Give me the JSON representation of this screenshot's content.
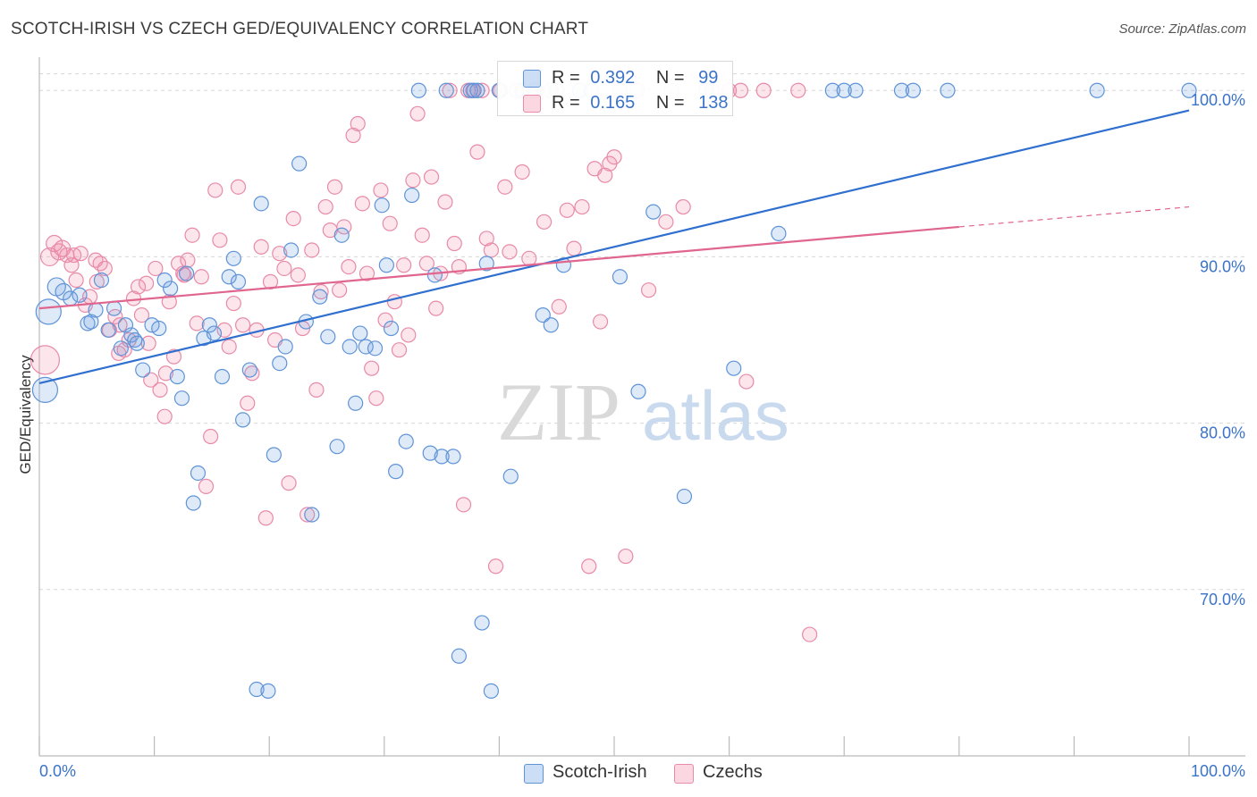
{
  "header": {
    "title": "SCOTCH-IRISH VS CZECH GED/EQUIVALENCY CORRELATION CHART",
    "source": "Source: ZipAtlas.com"
  },
  "watermark": {
    "part1": "ZIP",
    "part2": "atlas"
  },
  "legend": {
    "rows": [
      {
        "r_label": "R =",
        "r_value": "0.392",
        "n_label": "N =",
        "n_value": "99"
      },
      {
        "r_label": "R =",
        "r_value": "0.165",
        "n_label": "N =",
        "n_value": "138"
      }
    ]
  },
  "bottom_legend": {
    "series1": "Scotch-Irish",
    "series2": "Czechs"
  },
  "colors": {
    "blue_fill": "rgba(110,160,225,0.22)",
    "blue_stroke": "#5f93d8",
    "blue_line": "#2f6fcf",
    "pink_fill": "rgba(240,140,170,0.22)",
    "pink_stroke": "#e88aa8",
    "pink_line": "#e0658f",
    "axis_text": "#3b73c9",
    "grid": "#d8d8d8"
  },
  "chart_data": {
    "type": "scatter",
    "title": "SCOTCH-IRISH VS CZECH GED/EQUIVALENCY CORRELATION CHART",
    "xlabel": "",
    "ylabel": "GED/Equivalency",
    "xlim": [
      0,
      100
    ],
    "ylim": [
      60,
      102
    ],
    "x_tick_labels": [
      "0.0%",
      "100.0%"
    ],
    "y_ticks": [
      70,
      80,
      90,
      100
    ],
    "y_tick_labels": [
      "70.0%",
      "80.0%",
      "90.0%",
      "100.0%"
    ],
    "grid": true,
    "legend_position": "top-center",
    "series": [
      {
        "name": "Scotch-Irish",
        "R": 0.392,
        "N": 99,
        "trend": {
          "x": [
            0,
            100
          ],
          "y": [
            82.4,
            98.8
          ]
        },
        "points": [
          [
            0.5,
            82.0,
            14
          ],
          [
            0.8,
            86.7,
            14
          ],
          [
            1.5,
            88.2,
            10
          ],
          [
            2.1,
            87.9,
            9
          ],
          [
            2.7,
            87.5,
            8
          ],
          [
            3.5,
            87.7,
            8
          ],
          [
            4.2,
            86.0,
            8
          ],
          [
            4.5,
            86.1,
            8
          ],
          [
            4.9,
            86.8,
            8
          ],
          [
            5.4,
            88.6,
            8
          ],
          [
            6.0,
            85.6,
            8
          ],
          [
            6.5,
            86.9,
            8
          ],
          [
            7.1,
            84.5,
            8
          ],
          [
            7.5,
            85.9,
            8
          ],
          [
            8.0,
            85.3,
            8
          ],
          [
            8.3,
            85.0,
            8
          ],
          [
            8.5,
            84.8,
            8
          ],
          [
            9.0,
            83.2,
            8
          ],
          [
            9.8,
            85.9,
            8
          ],
          [
            10.4,
            85.7,
            8
          ],
          [
            10.9,
            88.6,
            8
          ],
          [
            11.4,
            88.1,
            8
          ],
          [
            12.0,
            82.8,
            8
          ],
          [
            12.4,
            81.5,
            8
          ],
          [
            12.8,
            89.0,
            8
          ],
          [
            13.4,
            75.2,
            8
          ],
          [
            13.8,
            77.0,
            8
          ],
          [
            14.3,
            85.1,
            8
          ],
          [
            14.8,
            85.9,
            8
          ],
          [
            15.2,
            85.4,
            8
          ],
          [
            15.9,
            82.8,
            8
          ],
          [
            16.5,
            88.8,
            8
          ],
          [
            16.9,
            89.9,
            8
          ],
          [
            17.3,
            88.5,
            8
          ],
          [
            17.7,
            80.2,
            8
          ],
          [
            18.3,
            83.2,
            8
          ],
          [
            18.9,
            64.0,
            8
          ],
          [
            19.3,
            93.2,
            8
          ],
          [
            19.9,
            63.9,
            8
          ],
          [
            20.4,
            78.1,
            8
          ],
          [
            20.9,
            83.6,
            8
          ],
          [
            21.4,
            84.6,
            8
          ],
          [
            21.9,
            90.4,
            8
          ],
          [
            22.6,
            95.6,
            8
          ],
          [
            23.2,
            86.1,
            8
          ],
          [
            23.7,
            74.5,
            8
          ],
          [
            24.4,
            87.6,
            8
          ],
          [
            25.1,
            85.2,
            8
          ],
          [
            25.9,
            78.6,
            8
          ],
          [
            26.3,
            91.3,
            8
          ],
          [
            27.0,
            84.6,
            8
          ],
          [
            27.5,
            81.2,
            8
          ],
          [
            27.9,
            85.4,
            8
          ],
          [
            28.4,
            84.6,
            8
          ],
          [
            29.2,
            84.5,
            8
          ],
          [
            29.8,
            93.1,
            8
          ],
          [
            30.2,
            89.5,
            8
          ],
          [
            30.6,
            85.7,
            8
          ],
          [
            31.0,
            77.1,
            8
          ],
          [
            31.9,
            78.9,
            8
          ],
          [
            32.4,
            93.7,
            8
          ],
          [
            33.0,
            100.0,
            8
          ],
          [
            34.0,
            78.2,
            8
          ],
          [
            34.4,
            88.9,
            8
          ],
          [
            35.0,
            78.0,
            8
          ],
          [
            35.4,
            100.0,
            8
          ],
          [
            36.0,
            78.0,
            8
          ],
          [
            36.5,
            66.0,
            8
          ],
          [
            37.5,
            100.0,
            8
          ],
          [
            37.8,
            100.0,
            8
          ],
          [
            38.1,
            100.0,
            8
          ],
          [
            38.5,
            68.0,
            8
          ],
          [
            38.9,
            89.6,
            8
          ],
          [
            39.3,
            63.9,
            8
          ],
          [
            40.0,
            100.0,
            8
          ],
          [
            41.0,
            76.8,
            8
          ],
          [
            42.0,
            100.0,
            8
          ],
          [
            43.0,
            100.0,
            8
          ],
          [
            45.0,
            100.0,
            8
          ],
          [
            47.0,
            100.0,
            8
          ],
          [
            48.0,
            100.0,
            8
          ],
          [
            43.8,
            86.5,
            8
          ],
          [
            44.5,
            85.9,
            8
          ],
          [
            45.6,
            89.5,
            8
          ],
          [
            50.5,
            88.8,
            8
          ],
          [
            52.1,
            81.9,
            8
          ],
          [
            53.4,
            92.7,
            8
          ],
          [
            56.1,
            75.6,
            8
          ],
          [
            58.0,
            100.0,
            8
          ],
          [
            60.4,
            83.3,
            8
          ],
          [
            64.3,
            91.4,
            8
          ],
          [
            69.0,
            100.0,
            8
          ],
          [
            75.0,
            100.0,
            8
          ],
          [
            76.0,
            100.0,
            8
          ],
          [
            79.0,
            100.0,
            8
          ],
          [
            92.0,
            100.0,
            8
          ],
          [
            100.0,
            100.0,
            8
          ],
          [
            70.0,
            100.0,
            8
          ],
          [
            71.0,
            100.0,
            8
          ]
        ]
      },
      {
        "name": "Czechs",
        "R": 0.165,
        "N": 138,
        "trend": {
          "x": [
            0,
            80
          ],
          "y": [
            86.9,
            91.8
          ]
        },
        "trend_dashed": {
          "x": [
            80,
            100
          ],
          "y": [
            91.8,
            93.0
          ]
        },
        "points": [
          [
            0.5,
            83.8,
            16
          ],
          [
            0.9,
            90.0,
            10
          ],
          [
            1.3,
            90.8,
            9
          ],
          [
            1.7,
            90.3,
            9
          ],
          [
            2.0,
            90.5,
            9
          ],
          [
            2.4,
            90.1,
            8
          ],
          [
            2.8,
            89.5,
            8
          ],
          [
            3.2,
            88.6,
            8
          ],
          [
            3.6,
            90.2,
            8
          ],
          [
            4.0,
            87.1,
            8
          ],
          [
            4.4,
            87.6,
            8
          ],
          [
            4.9,
            89.8,
            8
          ],
          [
            5.3,
            89.6,
            8
          ],
          [
            5.7,
            89.3,
            8
          ],
          [
            6.1,
            85.6,
            8
          ],
          [
            6.6,
            86.4,
            8
          ],
          [
            7.0,
            85.9,
            8
          ],
          [
            7.4,
            84.4,
            8
          ],
          [
            7.8,
            85.0,
            8
          ],
          [
            8.2,
            87.5,
            8
          ],
          [
            8.6,
            88.2,
            8
          ],
          [
            8.9,
            86.5,
            8
          ],
          [
            9.3,
            88.4,
            8
          ],
          [
            9.7,
            82.6,
            8
          ],
          [
            10.1,
            89.3,
            8
          ],
          [
            10.5,
            82.0,
            8
          ],
          [
            10.9,
            80.4,
            8
          ],
          [
            11.3,
            87.3,
            8
          ],
          [
            11.7,
            84.0,
            8
          ],
          [
            12.1,
            89.6,
            8
          ],
          [
            12.5,
            89.0,
            8
          ],
          [
            12.9,
            89.8,
            8
          ],
          [
            13.3,
            91.3,
            8
          ],
          [
            13.7,
            86.0,
            8
          ],
          [
            14.1,
            88.8,
            8
          ],
          [
            14.5,
            76.2,
            8
          ],
          [
            14.9,
            79.2,
            8
          ],
          [
            15.3,
            94.0,
            8
          ],
          [
            15.7,
            91.0,
            8
          ],
          [
            16.1,
            85.6,
            8
          ],
          [
            16.5,
            84.6,
            8
          ],
          [
            16.9,
            87.2,
            8
          ],
          [
            17.3,
            94.2,
            8
          ],
          [
            17.7,
            85.9,
            8
          ],
          [
            18.1,
            81.2,
            8
          ],
          [
            18.5,
            83.0,
            8
          ],
          [
            18.9,
            85.6,
            8
          ],
          [
            19.3,
            90.6,
            8
          ],
          [
            19.7,
            74.3,
            8
          ],
          [
            20.1,
            88.5,
            8
          ],
          [
            20.5,
            85.0,
            8
          ],
          [
            20.9,
            90.2,
            8
          ],
          [
            21.3,
            89.3,
            8
          ],
          [
            21.7,
            76.4,
            8
          ],
          [
            22.1,
            92.3,
            8
          ],
          [
            22.5,
            88.9,
            8
          ],
          [
            22.9,
            85.7,
            8
          ],
          [
            23.3,
            74.5,
            8
          ],
          [
            23.7,
            90.4,
            8
          ],
          [
            24.1,
            82.0,
            8
          ],
          [
            24.5,
            87.9,
            8
          ],
          [
            24.9,
            93.0,
            8
          ],
          [
            25.3,
            91.6,
            8
          ],
          [
            25.7,
            94.2,
            8
          ],
          [
            26.1,
            88.0,
            8
          ],
          [
            26.5,
            91.8,
            8
          ],
          [
            26.9,
            89.4,
            8
          ],
          [
            27.3,
            97.3,
            8
          ],
          [
            27.7,
            98.0,
            8
          ],
          [
            28.1,
            93.2,
            8
          ],
          [
            28.5,
            89.0,
            8
          ],
          [
            28.9,
            83.3,
            8
          ],
          [
            29.3,
            81.5,
            8
          ],
          [
            29.7,
            94.0,
            8
          ],
          [
            30.1,
            86.2,
            8
          ],
          [
            30.5,
            92.0,
            8
          ],
          [
            30.9,
            87.3,
            8
          ],
          [
            31.3,
            84.4,
            8
          ],
          [
            31.7,
            89.5,
            8
          ],
          [
            32.1,
            85.3,
            8
          ],
          [
            32.5,
            94.6,
            8
          ],
          [
            32.9,
            98.6,
            8
          ],
          [
            33.3,
            91.3,
            8
          ],
          [
            33.7,
            89.6,
            8
          ],
          [
            34.1,
            94.8,
            8
          ],
          [
            34.5,
            86.9,
            8
          ],
          [
            34.9,
            89.0,
            8
          ],
          [
            35.3,
            93.3,
            8
          ],
          [
            35.7,
            100.0,
            8
          ],
          [
            36.1,
            90.8,
            8
          ],
          [
            36.5,
            89.4,
            8
          ],
          [
            36.9,
            75.1,
            8
          ],
          [
            37.3,
            100.0,
            8
          ],
          [
            37.7,
            100.0,
            8
          ],
          [
            38.1,
            96.3,
            8
          ],
          [
            38.5,
            100.0,
            8
          ],
          [
            38.9,
            91.1,
            8
          ],
          [
            39.3,
            90.4,
            8
          ],
          [
            39.7,
            71.4,
            8
          ],
          [
            40.1,
            100.0,
            8
          ],
          [
            40.5,
            94.2,
            8
          ],
          [
            40.9,
            90.3,
            8
          ],
          [
            41.5,
            100.0,
            8
          ],
          [
            42.0,
            95.1,
            8
          ],
          [
            42.6,
            89.9,
            8
          ],
          [
            43.2,
            100.0,
            8
          ],
          [
            43.9,
            92.1,
            8
          ],
          [
            44.5,
            100.0,
            8
          ],
          [
            45.2,
            87.0,
            8
          ],
          [
            45.9,
            92.8,
            8
          ],
          [
            46.5,
            90.5,
            8
          ],
          [
            47.2,
            93.0,
            8
          ],
          [
            47.8,
            71.4,
            8
          ],
          [
            48.3,
            95.3,
            8
          ],
          [
            48.8,
            86.1,
            8
          ],
          [
            49.2,
            94.9,
            8
          ],
          [
            49.6,
            95.6,
            8
          ],
          [
            50.0,
            96.0,
            8
          ],
          [
            51.0,
            72.0,
            8
          ],
          [
            52.0,
            100.0,
            8
          ],
          [
            53.0,
            88.0,
            8
          ],
          [
            54.5,
            92.1,
            8
          ],
          [
            56.0,
            93.0,
            8
          ],
          [
            60.0,
            100.0,
            8
          ],
          [
            61.0,
            100.0,
            8
          ],
          [
            61.5,
            82.5,
            8
          ],
          [
            63.0,
            100.0,
            8
          ],
          [
            67.0,
            67.3,
            8
          ],
          [
            66.0,
            100.0,
            8
          ],
          [
            58.5,
            100.0,
            8
          ],
          [
            55.0,
            100.0,
            8
          ],
          [
            50.5,
            100.0,
            8
          ],
          [
            3.0,
            90.1,
            8
          ],
          [
            5.0,
            88.5,
            8
          ],
          [
            6.9,
            84.2,
            8
          ],
          [
            9.5,
            84.8,
            8
          ],
          [
            11.0,
            83.0,
            8
          ],
          [
            12.6,
            88.9,
            8
          ]
        ]
      }
    ]
  }
}
